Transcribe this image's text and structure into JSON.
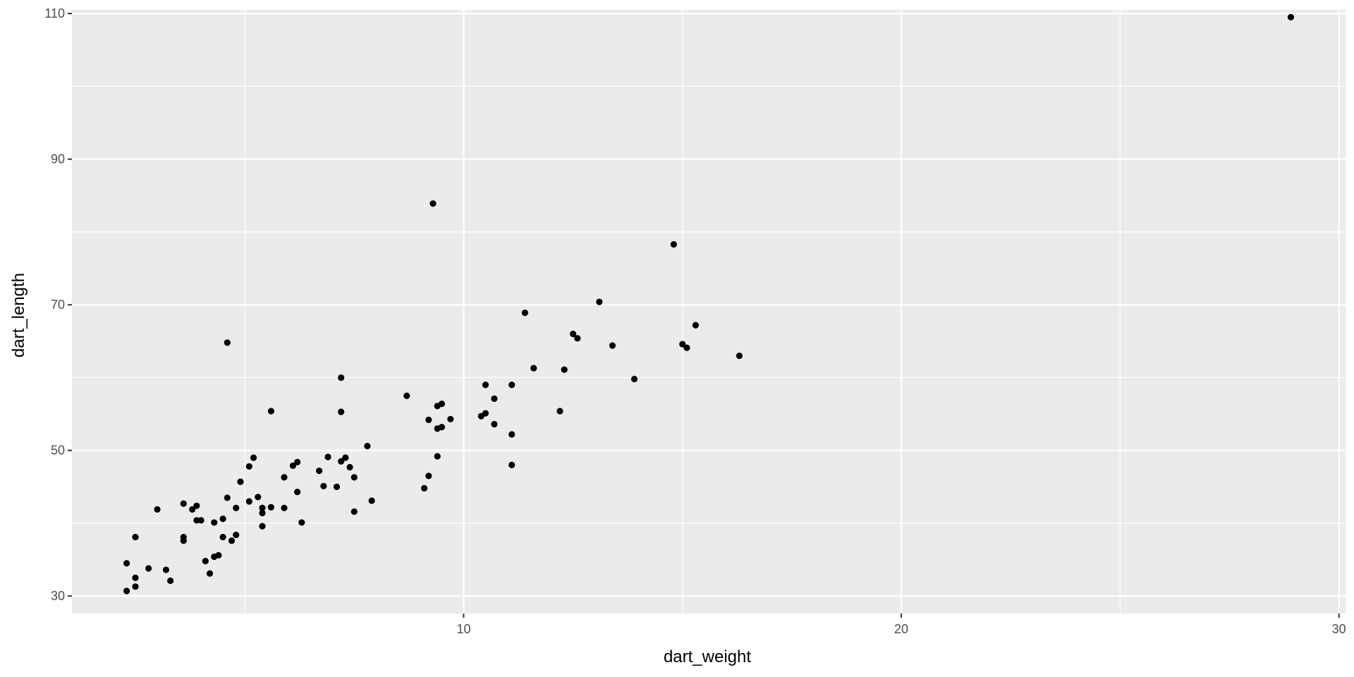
{
  "chart_data": {
    "type": "scatter",
    "xlabel": "dart_weight",
    "ylabel": "dart_length",
    "xlim": [
      1.05,
      30.15
    ],
    "ylim": [
      27.6,
      110.5
    ],
    "x_ticks": [
      10,
      20,
      30
    ],
    "x_tick_labels": [
      "10",
      "20",
      "30"
    ],
    "y_ticks": [
      30,
      50,
      70,
      90,
      110
    ],
    "y_tick_labels": [
      "30",
      "50",
      "70",
      "90",
      "110"
    ],
    "grid": true,
    "colors": {
      "panel": "#ebebeb",
      "grid": "#ffffff",
      "point": "#000000",
      "tick_text": "#4d4d4d",
      "title_text": "#000000"
    },
    "points": [
      [
        2.3,
        30.7
      ],
      [
        2.3,
        34.5
      ],
      [
        2.5,
        31.3
      ],
      [
        2.5,
        32.5
      ],
      [
        2.5,
        38.1
      ],
      [
        2.8,
        33.8
      ],
      [
        3.0,
        41.9
      ],
      [
        3.2,
        33.6
      ],
      [
        3.3,
        32.1
      ],
      [
        3.6,
        42.7
      ],
      [
        3.6,
        38.1
      ],
      [
        3.6,
        37.6
      ],
      [
        3.8,
        41.9
      ],
      [
        3.9,
        42.4
      ],
      [
        3.9,
        40.4
      ],
      [
        4.0,
        40.4
      ],
      [
        4.1,
        34.8
      ],
      [
        4.2,
        33.1
      ],
      [
        4.3,
        40.1
      ],
      [
        4.3,
        35.4
      ],
      [
        4.4,
        35.6
      ],
      [
        4.5,
        38.1
      ],
      [
        4.5,
        40.6
      ],
      [
        4.6,
        43.5
      ],
      [
        4.6,
        64.8
      ],
      [
        4.7,
        37.6
      ],
      [
        4.8,
        42.1
      ],
      [
        4.8,
        38.4
      ],
      [
        4.9,
        45.7
      ],
      [
        5.1,
        43.0
      ],
      [
        5.1,
        47.8
      ],
      [
        5.2,
        49.0
      ],
      [
        5.3,
        43.6
      ],
      [
        5.4,
        39.6
      ],
      [
        5.4,
        41.4
      ],
      [
        5.4,
        42.1
      ],
      [
        5.6,
        42.2
      ],
      [
        5.6,
        55.4
      ],
      [
        5.9,
        46.3
      ],
      [
        5.9,
        42.1
      ],
      [
        6.1,
        47.9
      ],
      [
        6.2,
        48.4
      ],
      [
        6.2,
        44.3
      ],
      [
        6.3,
        40.1
      ],
      [
        6.7,
        47.2
      ],
      [
        6.8,
        45.1
      ],
      [
        6.9,
        49.1
      ],
      [
        7.1,
        45.0
      ],
      [
        7.2,
        48.5
      ],
      [
        7.2,
        55.3
      ],
      [
        7.2,
        60.0
      ],
      [
        7.3,
        49.0
      ],
      [
        7.4,
        47.7
      ],
      [
        7.5,
        46.3
      ],
      [
        7.5,
        41.6
      ],
      [
        7.8,
        50.6
      ],
      [
        7.9,
        43.1
      ],
      [
        8.7,
        57.5
      ],
      [
        9.1,
        44.8
      ],
      [
        9.2,
        46.5
      ],
      [
        9.2,
        54.2
      ],
      [
        9.3,
        83.9
      ],
      [
        9.4,
        53.0
      ],
      [
        9.4,
        49.2
      ],
      [
        9.4,
        56.1
      ],
      [
        9.5,
        56.4
      ],
      [
        9.5,
        53.2
      ],
      [
        9.7,
        54.3
      ],
      [
        10.4,
        54.7
      ],
      [
        10.5,
        55.1
      ],
      [
        10.5,
        59.0
      ],
      [
        10.7,
        53.6
      ],
      [
        10.7,
        57.1
      ],
      [
        11.1,
        59.0
      ],
      [
        11.1,
        52.2
      ],
      [
        11.1,
        48.0
      ],
      [
        11.4,
        68.9
      ],
      [
        11.6,
        61.3
      ],
      [
        12.2,
        55.4
      ],
      [
        12.3,
        61.1
      ],
      [
        12.5,
        66.0
      ],
      [
        12.6,
        65.4
      ],
      [
        13.1,
        70.4
      ],
      [
        13.4,
        64.4
      ],
      [
        13.9,
        59.8
      ],
      [
        14.8,
        78.3
      ],
      [
        15.0,
        64.6
      ],
      [
        15.1,
        64.1
      ],
      [
        15.3,
        67.2
      ],
      [
        16.3,
        63.0
      ],
      [
        28.9,
        109.5
      ]
    ]
  }
}
